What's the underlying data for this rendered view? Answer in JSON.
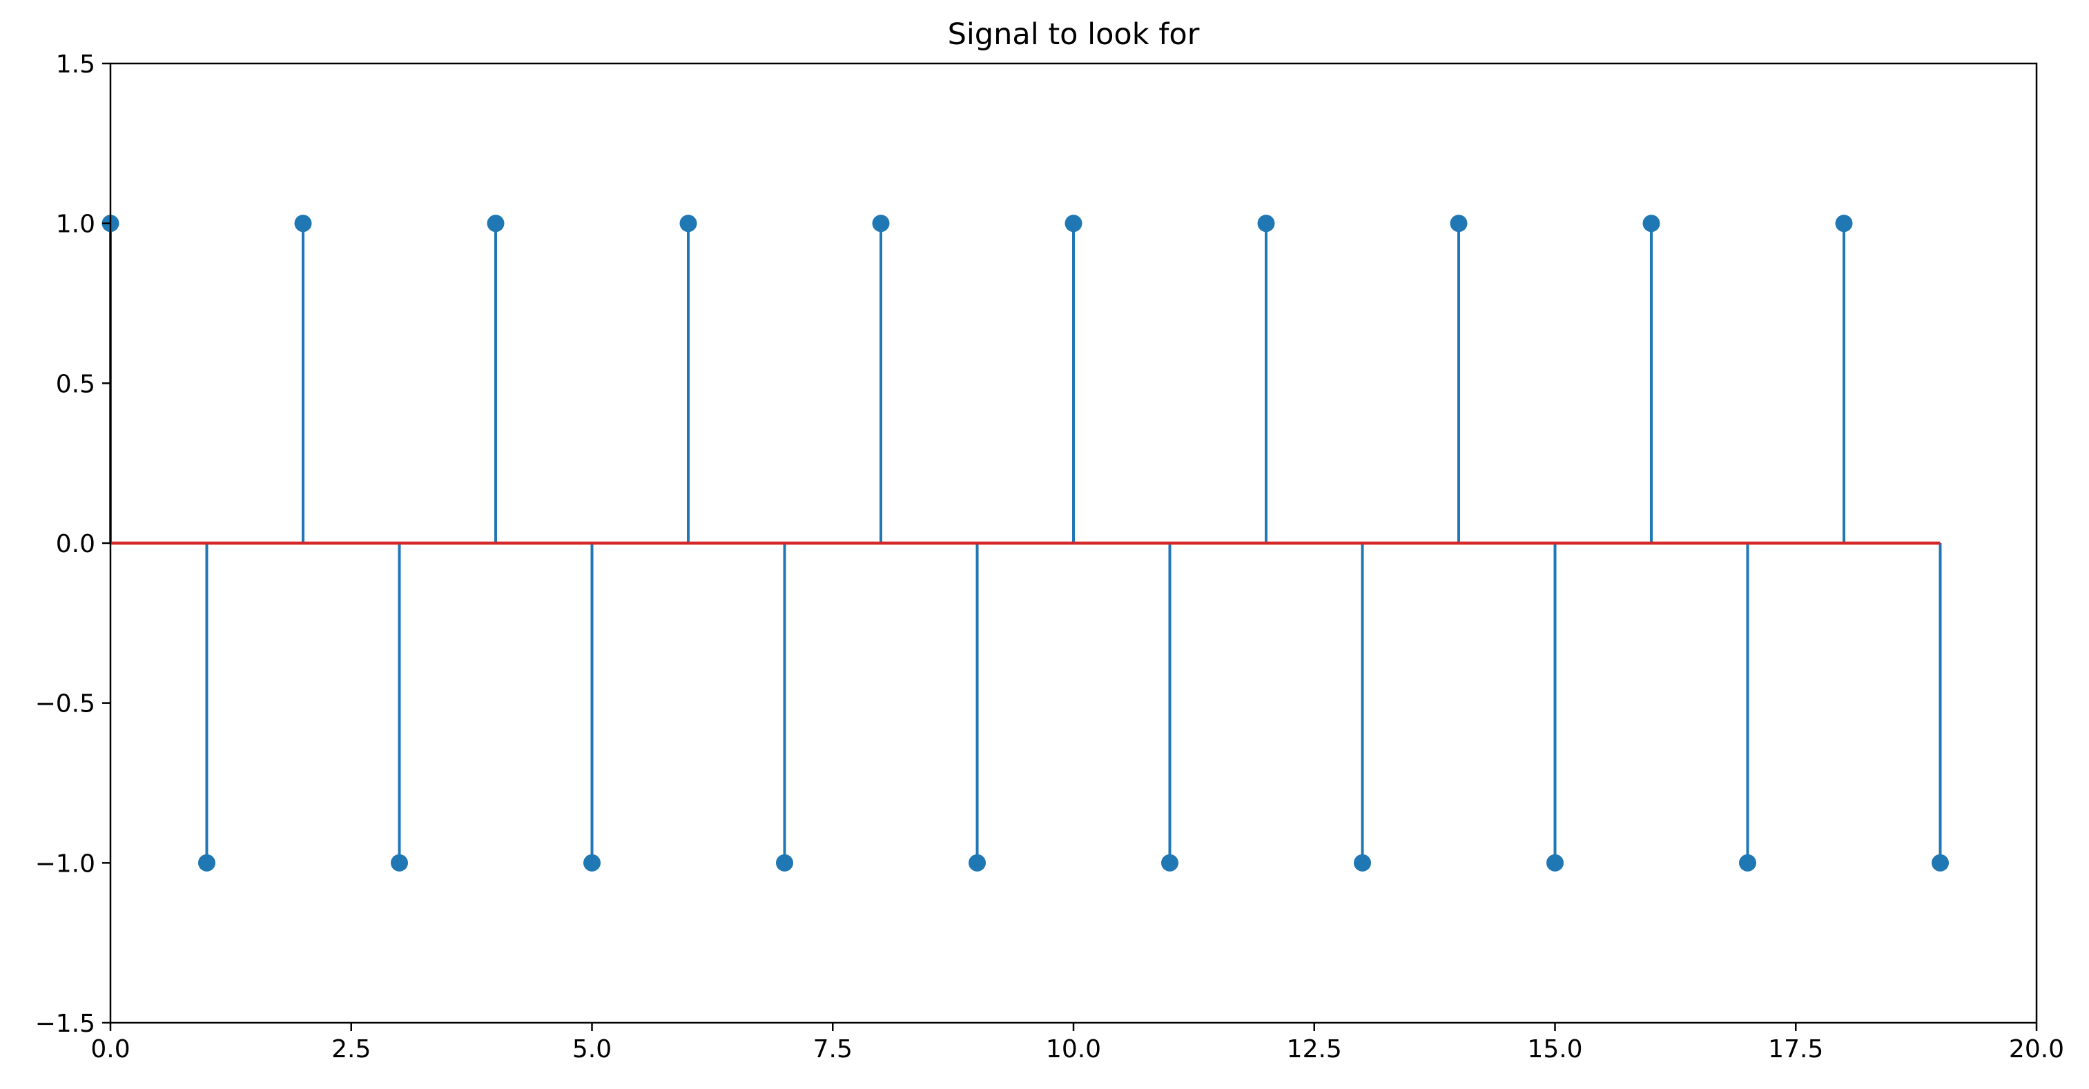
{
  "chart_data": {
    "type": "stem",
    "title": "Signal to look for",
    "xlabel": "",
    "ylabel": "",
    "xlim": [
      0,
      20
    ],
    "ylim": [
      -1.5,
      1.5
    ],
    "grid": false,
    "x_ticks": [
      "0.0",
      "2.5",
      "5.0",
      "7.5",
      "10.0",
      "12.5",
      "15.0",
      "17.5",
      "20.0"
    ],
    "y_ticks": [
      "1.5",
      "1.0",
      "0.5",
      "0.0",
      "−0.5",
      "−1.0",
      "−1.5"
    ],
    "x": [
      0,
      1,
      2,
      3,
      4,
      5,
      6,
      7,
      8,
      9,
      10,
      11,
      12,
      13,
      14,
      15,
      16,
      17,
      18,
      19
    ],
    "values": [
      1,
      -1,
      1,
      -1,
      1,
      -1,
      1,
      -1,
      1,
      -1,
      1,
      -1,
      1,
      -1,
      1,
      -1,
      1,
      -1,
      1,
      -1
    ],
    "baseline": 0,
    "colors": {
      "stem": "#1f77b4",
      "marker": "#1f77b4",
      "baseline": "#d62728",
      "axes": "#000000"
    }
  }
}
